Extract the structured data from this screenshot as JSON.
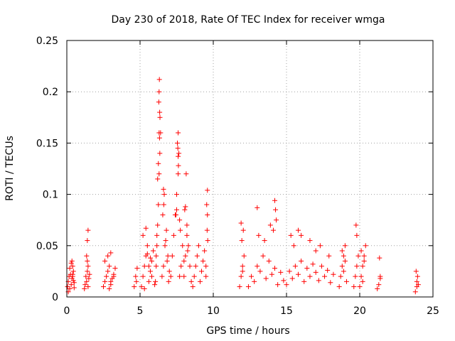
{
  "chart_data": {
    "type": "scatter",
    "title": "Day 230 of 2018, Rate Of TEC Index for receiver wmga",
    "xlabel": "GPS time / hours",
    "ylabel": "ROTI / TECUs",
    "xlim": [
      0,
      25
    ],
    "ylim": [
      0,
      0.25
    ],
    "x_ticks": [
      0,
      5,
      10,
      15,
      20,
      25
    ],
    "y_ticks": [
      0,
      0.05,
      0.1,
      0.15,
      0.2,
      0.25
    ],
    "x_tick_labels": [
      "0",
      "5",
      "10",
      "15",
      "20",
      "25"
    ],
    "y_tick_labels": [
      "0",
      "0.05",
      "0.1",
      "0.15",
      "0.2",
      "0.25"
    ],
    "grid": true,
    "marker": "plus",
    "color": "#ff0000",
    "series": [
      {
        "x": [
          0.05,
          0.1,
          0.15,
          0.2,
          0.25,
          0.3,
          0.35,
          0.4,
          0.45,
          0.5,
          0.1,
          0.2,
          0.3,
          0.4,
          0.5,
          0.35,
          0.4,
          0.45,
          1.2,
          1.25,
          1.3,
          1.35,
          1.4,
          1.45,
          1.5,
          1.55,
          1.35,
          1.4,
          1.45,
          1.4,
          1.45,
          2.5,
          2.6,
          2.7,
          2.8,
          2.9,
          3.0,
          3.1,
          3.2,
          3.3,
          2.6,
          2.8,
          3.0,
          3.2,
          2.9,
          3.0,
          4.6,
          4.7,
          4.8,
          4.75,
          5.1,
          5.2,
          5.3,
          5.4,
          5.5,
          5.6,
          5.7,
          5.8,
          5.9,
          6.0,
          5.2,
          5.4,
          5.6,
          5.8,
          5.3,
          5.5,
          5.7,
          6.05,
          6.1,
          6.15,
          6.2,
          6.25,
          6.3,
          6.35,
          6.4,
          6.3,
          6.32,
          6.28,
          6.34,
          6.36,
          6.3,
          6.2,
          6.25,
          6.33,
          6.15,
          6.1,
          6.5,
          6.6,
          6.7,
          6.8,
          6.9,
          7.0,
          6.55,
          6.65,
          6.6,
          6.75,
          6.85,
          6.95,
          6.62,
          7.1,
          7.2,
          7.3,
          7.4,
          7.5,
          7.6,
          7.7,
          7.8,
          7.9,
          7.55,
          7.6,
          7.65,
          7.58,
          7.62,
          7.6,
          7.7,
          7.5,
          7.45,
          7.75,
          8.0,
          8.1,
          8.2,
          8.3,
          8.4,
          8.5,
          8.05,
          8.15,
          8.2,
          8.1,
          8.25,
          8.0,
          8.6,
          8.7,
          8.8,
          8.9,
          9.0,
          9.1,
          9.2,
          9.3,
          9.4,
          9.5,
          9.6,
          9.55,
          9.6,
          9.58,
          9.62,
          9.5,
          11.8,
          11.9,
          12.0,
          12.1,
          11.95,
          12.05,
          11.9,
          12.0,
          12.4,
          12.6,
          12.8,
          13.0,
          13.2,
          13.4,
          13.6,
          13.8,
          14.0,
          14.2,
          14.4,
          14.6,
          14.8,
          13.0,
          13.1,
          13.5,
          13.9,
          14.2,
          14.25,
          14.3,
          14.1,
          15.0,
          15.2,
          15.4,
          15.6,
          15.8,
          16.0,
          16.2,
          16.4,
          16.6,
          16.8,
          17.0,
          17.2,
          17.4,
          17.6,
          17.8,
          18.0,
          18.2,
          15.5,
          16.0,
          16.6,
          17.0,
          17.3,
          17.9,
          15.3,
          15.8,
          18.6,
          18.7,
          18.8,
          18.9,
          19.0,
          19.1,
          18.8,
          19.0,
          18.9,
          19.6,
          19.7,
          19.8,
          19.9,
          19.75,
          19.8,
          20.0,
          20.1,
          20.2,
          20.3,
          20.4,
          20.2,
          20.1,
          20.3,
          21.2,
          21.3,
          21.4,
          21.35,
          21.4,
          23.8,
          23.9,
          24.0,
          23.85,
          23.95,
          23.9
        ],
        "y": [
          0.01,
          0.015,
          0.02,
          0.008,
          0.022,
          0.012,
          0.018,
          0.03,
          0.025,
          0.014,
          0.005,
          0.028,
          0.033,
          0.02,
          0.009,
          0.035,
          0.022,
          0.016,
          0.008,
          0.012,
          0.02,
          0.015,
          0.025,
          0.01,
          0.018,
          0.022,
          0.04,
          0.055,
          0.065,
          0.035,
          0.03,
          0.01,
          0.015,
          0.02,
          0.025,
          0.03,
          0.012,
          0.018,
          0.022,
          0.028,
          0.035,
          0.04,
          0.043,
          0.02,
          0.008,
          0.015,
          0.01,
          0.02,
          0.028,
          0.015,
          0.01,
          0.02,
          0.03,
          0.04,
          0.05,
          0.015,
          0.025,
          0.035,
          0.045,
          0.012,
          0.06,
          0.067,
          0.03,
          0.02,
          0.008,
          0.042,
          0.038,
          0.015,
          0.03,
          0.05,
          0.07,
          0.09,
          0.12,
          0.14,
          0.16,
          0.2,
          0.212,
          0.19,
          0.18,
          0.175,
          0.16,
          0.115,
          0.13,
          0.155,
          0.06,
          0.04,
          0.02,
          0.03,
          0.05,
          0.065,
          0.04,
          0.025,
          0.08,
          0.1,
          0.105,
          0.055,
          0.035,
          0.015,
          0.09,
          0.02,
          0.04,
          0.06,
          0.08,
          0.1,
          0.12,
          0.02,
          0.03,
          0.05,
          0.15,
          0.16,
          0.14,
          0.145,
          0.128,
          0.137,
          0.075,
          0.085,
          0.08,
          0.065,
          0.02,
          0.04,
          0.07,
          0.05,
          0.03,
          0.015,
          0.085,
          0.12,
          0.06,
          0.088,
          0.045,
          0.035,
          0.01,
          0.02,
          0.03,
          0.04,
          0.05,
          0.015,
          0.025,
          0.035,
          0.045,
          0.02,
          0.104,
          0.09,
          0.08,
          0.065,
          0.055,
          0.03,
          0.01,
          0.02,
          0.03,
          0.04,
          0.055,
          0.065,
          0.072,
          0.025,
          0.01,
          0.02,
          0.015,
          0.03,
          0.025,
          0.04,
          0.018,
          0.035,
          0.022,
          0.028,
          0.012,
          0.024,
          0.016,
          0.087,
          0.06,
          0.055,
          0.07,
          0.094,
          0.085,
          0.075,
          0.065,
          0.012,
          0.025,
          0.018,
          0.03,
          0.022,
          0.035,
          0.015,
          0.028,
          0.02,
          0.032,
          0.024,
          0.016,
          0.03,
          0.02,
          0.026,
          0.014,
          0.022,
          0.05,
          0.06,
          0.055,
          0.045,
          0.05,
          0.04,
          0.06,
          0.065,
          0.01,
          0.02,
          0.03,
          0.04,
          0.05,
          0.015,
          0.045,
          0.035,
          0.025,
          0.01,
          0.02,
          0.03,
          0.04,
          0.07,
          0.06,
          0.01,
          0.02,
          0.03,
          0.04,
          0.05,
          0.015,
          0.045,
          0.035,
          0.008,
          0.012,
          0.018,
          0.038,
          0.02,
          0.005,
          0.01,
          0.012,
          0.025,
          0.02,
          0.015
        ]
      }
    ]
  }
}
